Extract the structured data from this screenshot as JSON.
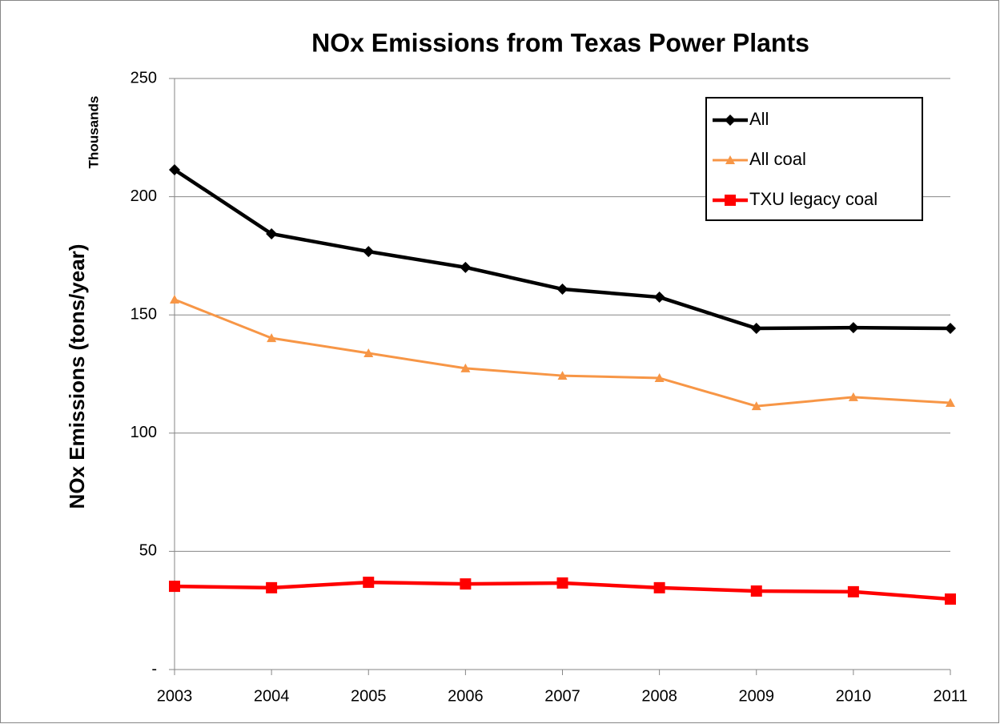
{
  "chart_data": {
    "type": "line",
    "title": "NOx Emissions from Texas Power Plants",
    "y_label": "NOx Emissions (tons/year)",
    "y_unit_label": "Thousands",
    "categories": [
      "2003",
      "2004",
      "2005",
      "2006",
      "2007",
      "2008",
      "2009",
      "2010",
      "2011"
    ],
    "series": [
      {
        "name": "All",
        "color": "#000000",
        "marker": "diamond",
        "values": [
          211.4,
          184.3,
          176.8,
          170.1,
          160.9,
          157.5,
          144.3,
          144.6,
          144.3
        ]
      },
      {
        "name": "All coal",
        "color": "#f79646",
        "marker": "triangle",
        "values": [
          156.5,
          140.2,
          133.8,
          127.4,
          124.3,
          123.3,
          111.4,
          115.2,
          112.8
        ]
      },
      {
        "name": "TXU legacy coal",
        "color": "#ff0000",
        "marker": "square",
        "values": [
          35.2,
          34.6,
          36.9,
          36.2,
          36.6,
          34.6,
          33.2,
          32.9,
          29.8
        ]
      }
    ],
    "ylim": [
      0,
      250
    ],
    "yticks": [
      {
        "value": 0,
        "label": "-"
      },
      50,
      100,
      150,
      200,
      250
    ],
    "grid": true,
    "legend": "top-right"
  }
}
